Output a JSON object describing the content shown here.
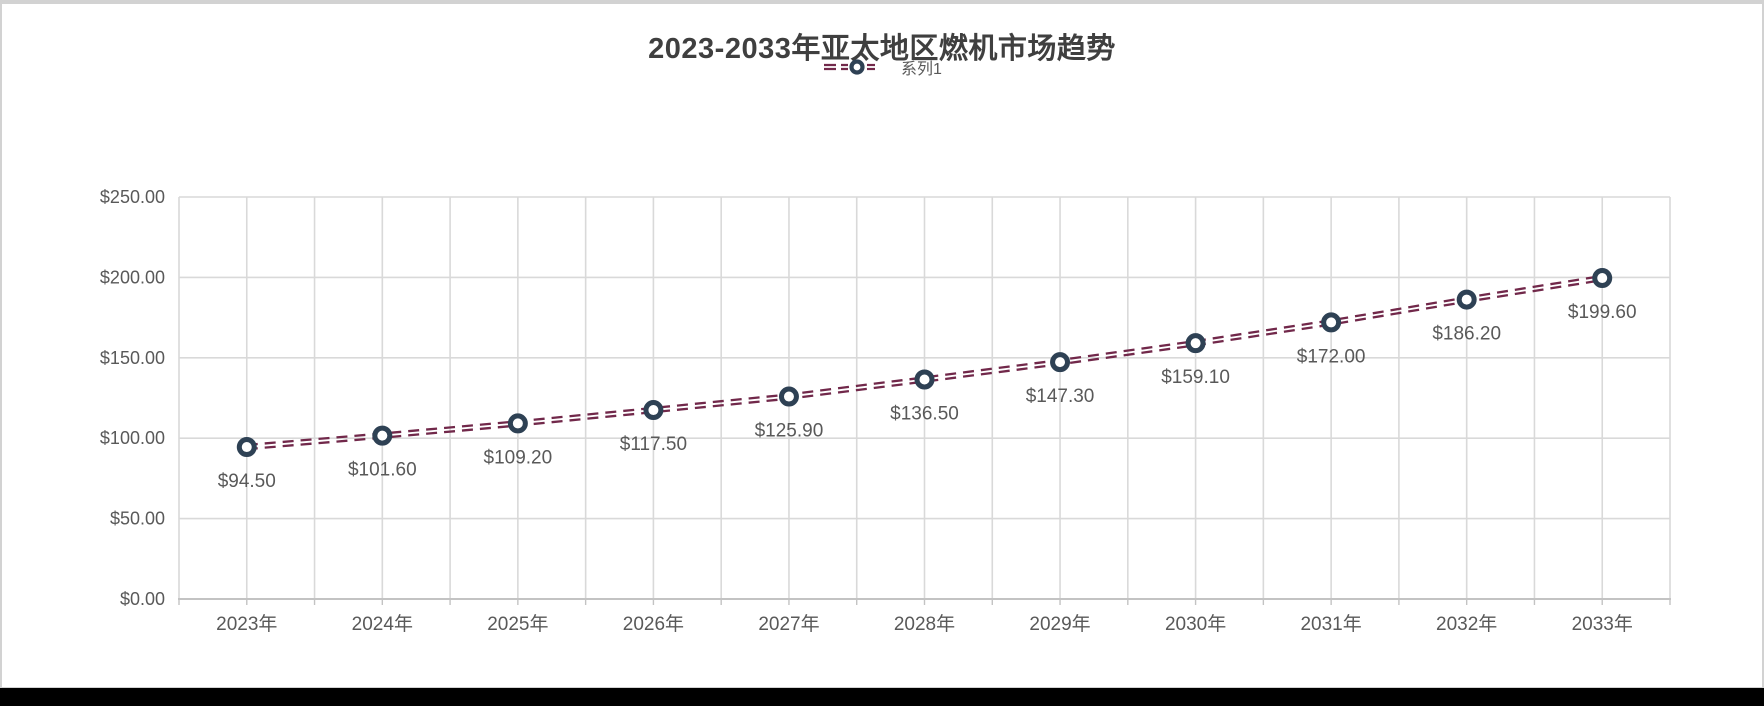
{
  "window": {
    "bottom_bar_color": "#000000",
    "card_background": "#ffffff",
    "card_border_color": "#d2d2d2"
  },
  "chart_data": {
    "type": "line",
    "title": "2023-2033年亚太地区燃机市场趋势",
    "legend_position": "top",
    "categories": [
      "2023年",
      "2024年",
      "2025年",
      "2026年",
      "2027年",
      "2028年",
      "2029年",
      "2030年",
      "2031年",
      "2032年",
      "2033年"
    ],
    "series": [
      {
        "name": "系列1",
        "values": [
          94.5,
          101.6,
          109.2,
          117.5,
          125.9,
          136.5,
          147.3,
          159.1,
          172.0,
          186.2,
          199.6
        ],
        "data_labels": [
          "$94.50",
          "$101.60",
          "$109.20",
          "$117.50",
          "$125.90",
          "$136.50",
          "$147.30",
          "$159.10",
          "$172.00",
          "$186.20",
          "$199.60"
        ],
        "line_style": "double-dashed",
        "line_color": "#71284A",
        "marker": "circle",
        "marker_stroke_color": "#2E4154",
        "marker_fill_color": "#FFFFFF"
      }
    ],
    "xlabel": "",
    "ylabel": "",
    "y_axis": {
      "min": 0,
      "max": 250,
      "step": 50,
      "tick_labels": [
        "$0.00",
        "$50.00",
        "$100.00",
        "$150.00",
        "$200.00",
        "$250.00"
      ]
    },
    "grid": true,
    "gridline_color": "#D9D9D9",
    "axis_line_color": "#C3C3C3",
    "text_color": "#595959",
    "title_color": "#3F3F3F"
  }
}
